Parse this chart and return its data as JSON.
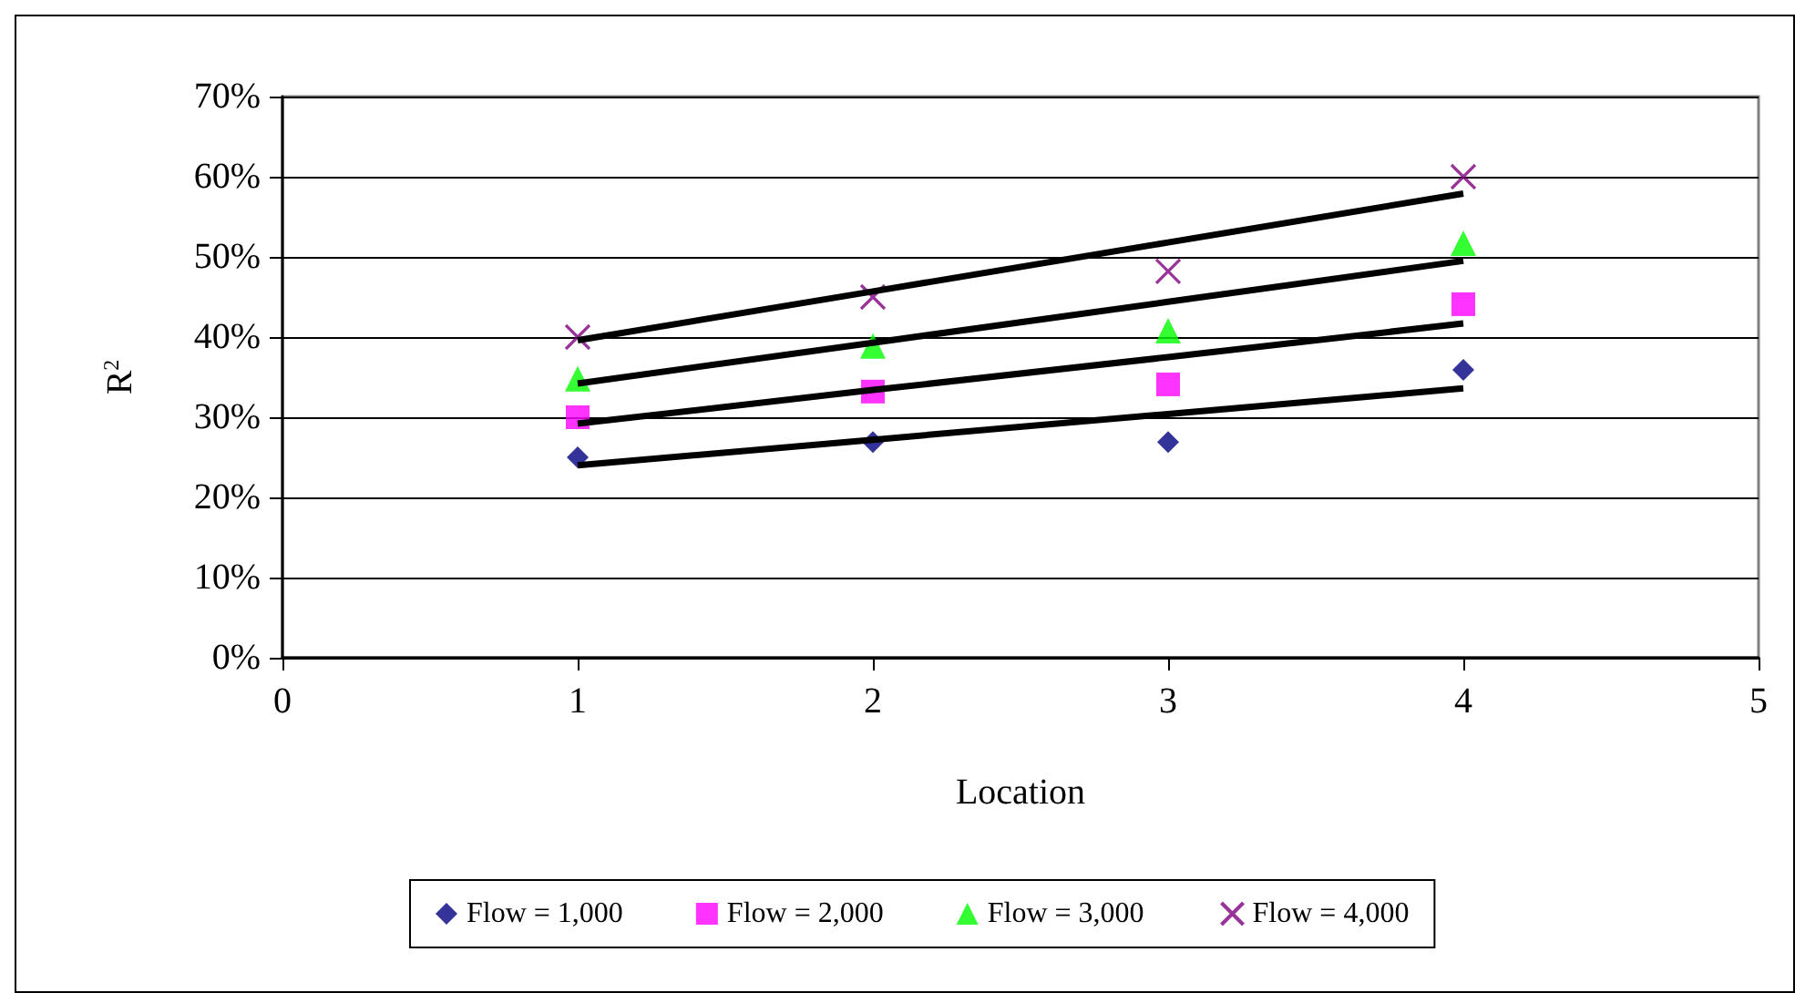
{
  "chart_data": {
    "type": "scatter",
    "xlabel": "Location",
    "ylabel": "R$^{2}$",
    "x": [
      1,
      2,
      3,
      4
    ],
    "series": [
      {
        "name": "Flow = 1,000",
        "color": "#000080",
        "marker": "diamond",
        "values": [
          25,
          26.9,
          26.9,
          35.9
        ]
      },
      {
        "name": "Flow = 2,000",
        "color": "#ff00ff",
        "marker": "square",
        "values": [
          30,
          33.2,
          34.1,
          44.1
        ]
      },
      {
        "name": "Flow = 3,000",
        "color": "#00ff00",
        "marker": "triangle",
        "values": [
          34.8,
          38.9,
          40.8,
          51.7
        ]
      },
      {
        "name": "Flow = 4,000",
        "color": "#800080",
        "marker": "cross",
        "values": [
          40,
          45,
          48.2,
          60
        ]
      },
      {
        "type": "line",
        "color": "#000000",
        "values": [
          24,
          27.2,
          30.4,
          33.6
        ]
      },
      {
        "type": "line",
        "color": "#000000",
        "values": [
          29.2,
          33.4,
          37.5,
          41.7
        ]
      },
      {
        "type": "line",
        "color": "#000000",
        "values": [
          34.2,
          39.3,
          44.4,
          49.5
        ]
      },
      {
        "type": "line",
        "color": "#000000",
        "values": [
          39.6,
          45.7,
          51.8,
          57.9
        ]
      }
    ],
    "xlim": [
      0,
      5
    ],
    "xticks": [
      0,
      1,
      2,
      3,
      4,
      5
    ],
    "ylim": [
      0,
      70
    ],
    "yticks": [
      {
        "value": 0,
        "label": "0%"
      },
      {
        "value": 10,
        "label": "10%"
      },
      {
        "value": 20,
        "label": "20%"
      },
      {
        "value": 30,
        "label": "30%"
      },
      {
        "value": 40,
        "label": "40%"
      },
      {
        "value": 50,
        "label": "50%"
      },
      {
        "value": 60,
        "label": "60%"
      },
      {
        "value": 70,
        "label": "70%"
      }
    ],
    "grid": "y",
    "legend": "bottom"
  }
}
